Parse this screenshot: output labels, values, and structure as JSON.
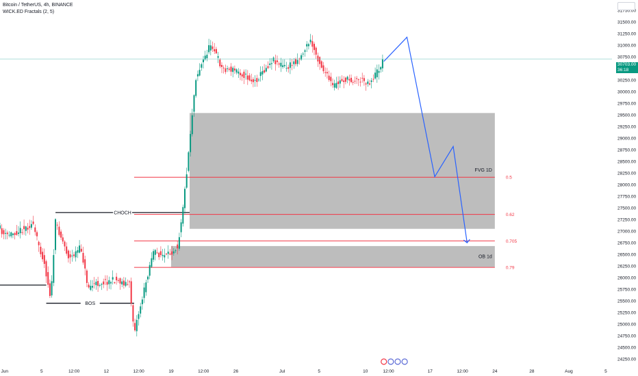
{
  "header": {
    "title": "Bitcoin / TetherUS, 4h, BINANCE",
    "indicator": "WICK.ED Fractals (2, 5)"
  },
  "last_price": {
    "value": "30703.00",
    "countdown": "36:18",
    "price": 30703,
    "color": "#089981"
  },
  "colors": {
    "up": "#089981",
    "down": "#f23645",
    "zone": "#bdbdbd",
    "fib": "#f23645",
    "projection": "#2962ff",
    "structure": "#131722",
    "price_line": "#80cbc4",
    "axis_text": "#131722"
  },
  "chart_data": {
    "type": "candlestick",
    "title": "Bitcoin / TetherUS, 4h, BINANCE",
    "symbol": "BTCUSDT",
    "timeframe": "4h",
    "exchange": "BINANCE",
    "ylim": [
      24150,
      31970
    ],
    "xlim": [
      "2023-05-31 12:00",
      "2023-08-05 16:00"
    ],
    "y_ticks": [
      24250,
      24500,
      24750,
      25000,
      25250,
      25500,
      25750,
      26000,
      26250,
      26500,
      26750,
      27000,
      27250,
      27500,
      27750,
      28000,
      28250,
      28500,
      28750,
      29000,
      29250,
      29500,
      29750,
      30000,
      30250,
      30500,
      30750,
      31000,
      31250,
      31500,
      31750
    ],
    "x_ticks": [
      {
        "label": "Jun",
        "t": "2023-06-01 00:00"
      },
      {
        "label": "5",
        "t": "2023-06-05 00:00"
      },
      {
        "label": "12:00",
        "t": "2023-06-08 12:00"
      },
      {
        "label": "12",
        "t": "2023-06-12 00:00"
      },
      {
        "label": "12:00",
        "t": "2023-06-15 12:00"
      },
      {
        "label": "19",
        "t": "2023-06-19 00:00"
      },
      {
        "label": "12:00",
        "t": "2023-06-22 12:00"
      },
      {
        "label": "26",
        "t": "2023-06-26 00:00"
      },
      {
        "label": "Jul",
        "t": "2023-07-01 00:00"
      },
      {
        "label": "5",
        "t": "2023-07-05 00:00"
      },
      {
        "label": "10",
        "t": "2023-07-10 00:00"
      },
      {
        "label": "12:00",
        "t": "2023-07-12 12:00"
      },
      {
        "label": "17",
        "t": "2023-07-17 00:00"
      },
      {
        "label": "12:00",
        "t": "2023-07-20 12:00"
      },
      {
        "label": "24",
        "t": "2023-07-24 00:00"
      },
      {
        "label": "28",
        "t": "2023-07-28 00:00"
      },
      {
        "label": "Aug",
        "t": "2023-08-01 00:00"
      },
      {
        "label": "5",
        "t": "2023-08-05 00:00"
      }
    ],
    "series_points": [
      {
        "t": "2023-05-31 12:00",
        "price": 27050
      },
      {
        "t": "2023-06-01 00:00",
        "price": 26900
      },
      {
        "t": "2023-06-02 12:00",
        "price": 27000
      },
      {
        "t": "2023-06-04 00:00",
        "price": 27150
      },
      {
        "t": "2023-06-05 06:00",
        "price": 26350
      },
      {
        "t": "2023-06-06 00:00",
        "price": 25550
      },
      {
        "t": "2023-06-06 12:00",
        "price": 27200
      },
      {
        "t": "2023-06-08 00:00",
        "price": 26400
      },
      {
        "t": "2023-06-09 06:00",
        "price": 26650
      },
      {
        "t": "2023-06-10 00:00",
        "price": 25800
      },
      {
        "t": "2023-06-11 12:00",
        "price": 25900
      },
      {
        "t": "2023-06-13 00:00",
        "price": 25950
      },
      {
        "t": "2023-06-14 12:00",
        "price": 25850
      },
      {
        "t": "2023-06-15 00:00",
        "price": 24850
      },
      {
        "t": "2023-06-16 00:00",
        "price": 25650
      },
      {
        "t": "2023-06-17 00:00",
        "price": 26550
      },
      {
        "t": "2023-06-18 12:00",
        "price": 26450
      },
      {
        "t": "2023-06-19 18:00",
        "price": 26700
      },
      {
        "t": "2023-06-20 12:00",
        "price": 27900
      },
      {
        "t": "2023-06-21 04:00",
        "price": 29300
      },
      {
        "t": "2023-06-21 16:00",
        "price": 30300
      },
      {
        "t": "2023-06-23 08:00",
        "price": 31050
      },
      {
        "t": "2023-06-24 12:00",
        "price": 30500
      },
      {
        "t": "2023-06-26 04:00",
        "price": 30450
      },
      {
        "t": "2023-06-28 00:00",
        "price": 30200
      },
      {
        "t": "2023-06-30 00:00",
        "price": 30700
      },
      {
        "t": "2023-07-01 12:00",
        "price": 30500
      },
      {
        "t": "2023-07-03 00:00",
        "price": 30750
      },
      {
        "t": "2023-07-04 00:00",
        "price": 31100
      },
      {
        "t": "2023-07-05 06:00",
        "price": 30550
      },
      {
        "t": "2023-07-06 12:00",
        "price": 30100
      },
      {
        "t": "2023-07-07 12:00",
        "price": 30250
      },
      {
        "t": "2023-07-09 12:00",
        "price": 30250
      },
      {
        "t": "2023-07-10 12:00",
        "price": 30200
      },
      {
        "t": "2023-07-11 12:00",
        "price": 30500
      },
      {
        "t": "2023-07-12 00:00",
        "price": 30703
      }
    ],
    "zones": [
      {
        "label": "FVG 1D",
        "from": "2023-06-21 00:00",
        "to": "2023-07-24 00:00",
        "low": 27050,
        "high": 29540
      },
      {
        "label": "OB 1d",
        "from": "2023-06-19 00:00",
        "to": "2023-07-24 00:00",
        "low": 26230,
        "high": 26680
      }
    ],
    "fib_levels": [
      {
        "label": "0.5",
        "price": 28160,
        "from": "2023-06-15 00:00",
        "to": "2023-07-24 00:00"
      },
      {
        "label": "0.62",
        "price": 27360,
        "from": "2023-06-15 00:00",
        "to": "2023-07-24 00:00"
      },
      {
        "label": "0.705",
        "price": 26790,
        "from": "2023-06-15 00:00",
        "to": "2023-07-24 00:00"
      },
      {
        "label": "0.79",
        "price": 26220,
        "from": "2023-06-15 00:00",
        "to": "2023-07-24 00:00"
      }
    ],
    "structure_lines": [
      {
        "label": "",
        "price": 25840,
        "from": "2023-05-31 12:00",
        "to": "2023-06-05 12:00"
      },
      {
        "label": "CHOCH",
        "price": 27400,
        "from": "2023-06-06 12:00",
        "to": "2023-06-21 00:00"
      },
      {
        "label": "BOS",
        "price": 25450,
        "from": "2023-06-05 12:00",
        "to": "2023-06-15 00:00"
      }
    ],
    "projection_path": [
      {
        "t": "2023-07-12 00:00",
        "price": 30650
      },
      {
        "t": "2023-07-14 12:00",
        "price": 31170
      },
      {
        "t": "2023-07-17 12:00",
        "price": 28170
      },
      {
        "t": "2023-07-19 12:00",
        "price": 28820
      },
      {
        "t": "2023-07-21 00:00",
        "price": 26750
      }
    ],
    "annotations": [
      {
        "label": "CHOCH"
      },
      {
        "label": "BOS"
      },
      {
        "label": "FVG 1D"
      },
      {
        "label": "OB 1d"
      }
    ]
  }
}
